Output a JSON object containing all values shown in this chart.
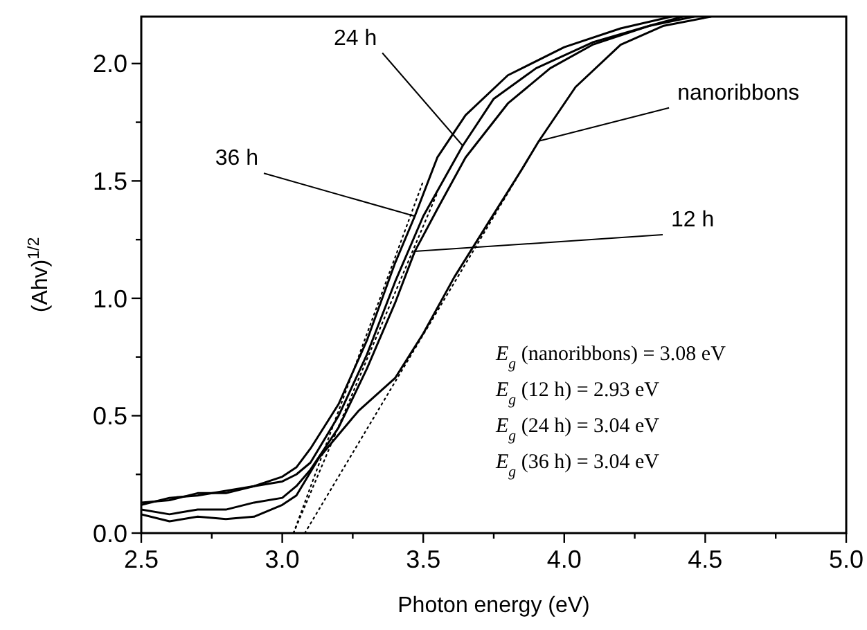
{
  "chart_data": {
    "type": "line",
    "xlabel": "Photon energy (eV)",
    "ylabel": "(Ahv)$^{1/2}$",
    "xlim": [
      2.5,
      5.0
    ],
    "ylim": [
      0,
      2.2
    ],
    "xticks": [
      {
        "value": 2.5,
        "label": "2.5"
      },
      {
        "value": 2.75,
        "label": null
      },
      {
        "value": 3.0,
        "label": "3.0"
      },
      {
        "value": 3.25,
        "label": null
      },
      {
        "value": 3.5,
        "label": "3.5"
      },
      {
        "value": 3.75,
        "label": null
      },
      {
        "value": 4.0,
        "label": "4.0"
      },
      {
        "value": 4.25,
        "label": null
      },
      {
        "value": 4.5,
        "label": "4.5"
      },
      {
        "value": 4.75,
        "label": null
      },
      {
        "value": 5.0,
        "label": "5.0"
      }
    ],
    "yticks": [
      {
        "value": 0,
        "label": "0.0"
      },
      {
        "value": 0.25,
        "label": null
      },
      {
        "value": 0.5,
        "label": "0.5"
      },
      {
        "value": 0.75,
        "label": null
      },
      {
        "value": 1.0,
        "label": "1.0"
      },
      {
        "value": 1.25,
        "label": null
      },
      {
        "value": 1.5,
        "label": "1.5"
      },
      {
        "value": 1.75,
        "label": null
      },
      {
        "value": 2.0,
        "label": "2.0"
      }
    ],
    "grid": false,
    "marker": "none",
    "line_style": "solid",
    "series": [
      {
        "color": "#000000",
        "x": [
          2.5,
          2.6,
          2.7,
          2.8,
          2.9,
          3.0,
          3.05,
          3.1,
          3.2,
          3.3,
          3.4,
          3.47,
          3.55,
          3.65,
          3.8,
          4.0,
          4.2,
          4.38
        ],
        "values": [
          0.12,
          0.15,
          0.16,
          0.18,
          0.2,
          0.24,
          0.28,
          0.36,
          0.55,
          0.82,
          1.15,
          1.35,
          1.6,
          1.78,
          1.95,
          2.07,
          2.15,
          2.2
        ]
      },
      {
        "color": "#000000",
        "x": [
          2.5,
          2.6,
          2.7,
          2.8,
          2.9,
          3.0,
          3.05,
          3.1,
          3.2,
          3.3,
          3.4,
          3.5,
          3.64,
          3.75,
          3.9,
          4.1,
          4.3,
          4.42
        ],
        "values": [
          0.13,
          0.14,
          0.17,
          0.17,
          0.2,
          0.22,
          0.25,
          0.3,
          0.5,
          0.76,
          1.07,
          1.35,
          1.65,
          1.85,
          1.98,
          2.09,
          2.16,
          2.2
        ]
      },
      {
        "color": "#000000",
        "x": [
          2.5,
          2.6,
          2.7,
          2.8,
          2.9,
          3.0,
          3.05,
          3.1,
          3.2,
          3.3,
          3.4,
          3.47,
          3.55,
          3.65,
          3.8,
          3.95,
          4.1,
          4.3,
          4.46
        ],
        "values": [
          0.1,
          0.08,
          0.1,
          0.1,
          0.13,
          0.15,
          0.2,
          0.27,
          0.45,
          0.7,
          0.98,
          1.2,
          1.38,
          1.6,
          1.83,
          1.98,
          2.08,
          2.16,
          2.2
        ]
      },
      {
        "color": "#000000",
        "x": [
          2.5,
          2.6,
          2.7,
          2.8,
          2.9,
          3.0,
          3.05,
          3.13,
          3.27,
          3.4,
          3.5,
          3.61,
          3.74,
          3.85,
          3.91,
          4.04,
          4.2,
          4.35,
          4.52
        ],
        "values": [
          0.08,
          0.05,
          0.07,
          0.06,
          0.07,
          0.12,
          0.16,
          0.32,
          0.52,
          0.66,
          0.85,
          1.09,
          1.34,
          1.55,
          1.67,
          1.9,
          2.08,
          2.16,
          2.2
        ]
      },
      {
        "color": "#000000",
        "line_style": "dotted",
        "x": [
          3.08,
          3.9
        ],
        "values": [
          0,
          1.65
        ]
      },
      {
        "color": "#000000",
        "line_style": "dotted",
        "x": [
          3.04,
          3.55
        ],
        "values": [
          0,
          1.45
        ]
      },
      {
        "color": "#000000",
        "line_style": "dotted",
        "x": [
          3.04,
          3.5
        ],
        "values": [
          0,
          1.5
        ]
      }
    ],
    "annotations": [
      {
        "text": "24 h",
        "x": 3.64,
        "y": 1.65
      },
      {
        "text": "36 h",
        "x": 3.47,
        "y": 1.35
      },
      {
        "text": "nanoribbons",
        "x": 3.91,
        "y": 1.67
      },
      {
        "text": "12 h",
        "x": 3.47,
        "y": 1.2
      },
      "E$_{g}$ (nanoribbons) = 3.08 eV",
      "E$_{g}$ (12 h) = 2.93 eV",
      "E$_{g}$ (24 h) = 3.04 eV",
      "E$_{g}$ (36 h) = 3.04 eV"
    ]
  }
}
